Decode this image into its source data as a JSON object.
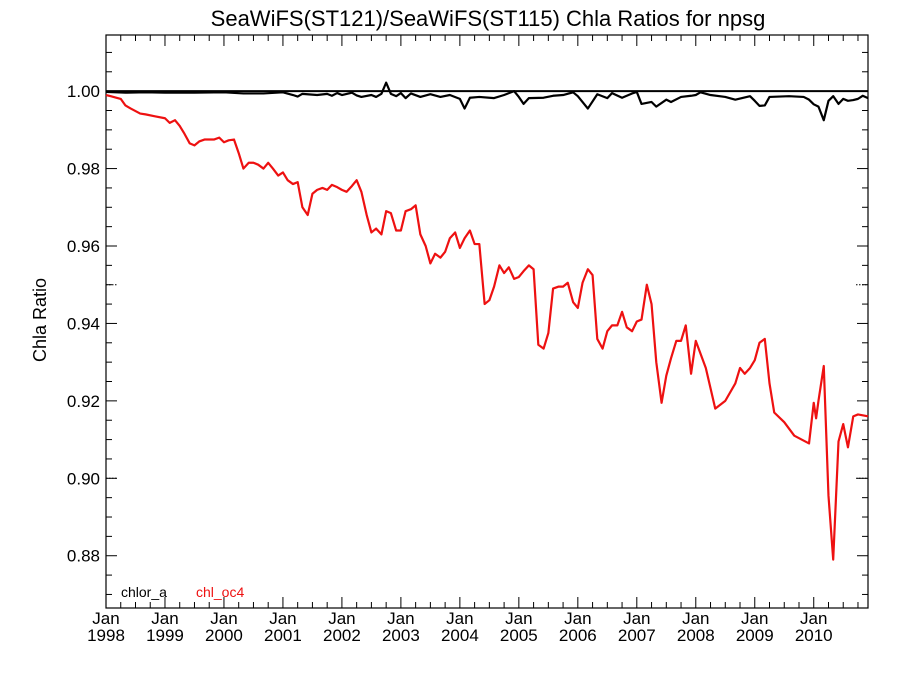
{
  "chart_data": {
    "type": "line",
    "title": "SeaWiFS(ST121)/SeaWiFS(ST115)  Chla Ratios for npsg",
    "xlabel": "",
    "ylabel": "Chla Ratio",
    "xlim": [
      1998.0,
      2010.92
    ],
    "ylim": [
      0.8665,
      1.0145
    ],
    "x_ticks": [
      {
        "month": "Jan",
        "year": "1998",
        "value": 1998
      },
      {
        "month": "Jan",
        "year": "1999",
        "value": 1999
      },
      {
        "month": "Jan",
        "year": "2000",
        "value": 2000
      },
      {
        "month": "Jan",
        "year": "2001",
        "value": 2001
      },
      {
        "month": "Jan",
        "year": "2002",
        "value": 2002
      },
      {
        "month": "Jan",
        "year": "2003",
        "value": 2003
      },
      {
        "month": "Jan",
        "year": "2004",
        "value": 2004
      },
      {
        "month": "Jan",
        "year": "2005",
        "value": 2005
      },
      {
        "month": "Jan",
        "year": "2006",
        "value": 2006
      },
      {
        "month": "Jan",
        "year": "2007",
        "value": 2007
      },
      {
        "month": "Jan",
        "year": "2008",
        "value": 2008
      },
      {
        "month": "Jan",
        "year": "2009",
        "value": 2009
      },
      {
        "month": "Jan",
        "year": "2010",
        "value": 2010
      }
    ],
    "y_ticks": [
      {
        "value": 0.88,
        "label": "0.88"
      },
      {
        "value": 0.9,
        "label": "0.90"
      },
      {
        "value": 0.92,
        "label": "0.92"
      },
      {
        "value": 0.94,
        "label": "0.94"
      },
      {
        "value": 0.96,
        "label": "0.96"
      },
      {
        "value": 0.98,
        "label": "0.98"
      },
      {
        "value": 1.0,
        "label": "1.00"
      }
    ],
    "reference_lines": [
      {
        "y": 1.0,
        "color": "#000000"
      },
      {
        "y": 0.95,
        "color": "#000000",
        "style": "dotted"
      },
      {
        "y": 0.9,
        "color": "#000000",
        "style": "dotted"
      }
    ],
    "legend": [
      {
        "name": "chlor_a",
        "color": "#000000"
      },
      {
        "name": "chl_oc4",
        "color": "#ee1111"
      }
    ],
    "series": [
      {
        "name": "chlor_a",
        "color": "#000000",
        "points": [
          [
            1998.0,
            0.9998
          ],
          [
            1998.33,
            0.9996
          ],
          [
            1998.67,
            0.9997
          ],
          [
            1999.0,
            0.9996
          ],
          [
            1999.5,
            0.9996
          ],
          [
            2000.0,
            0.9997
          ],
          [
            2000.33,
            0.9994
          ],
          [
            2000.67,
            0.9994
          ],
          [
            2001.0,
            0.9997
          ],
          [
            2001.17,
            0.999
          ],
          [
            2001.25,
            0.9986
          ],
          [
            2001.33,
            0.9993
          ],
          [
            2001.58,
            0.999
          ],
          [
            2001.75,
            0.9993
          ],
          [
            2001.83,
            0.9988
          ],
          [
            2001.92,
            0.9995
          ],
          [
            2002.0,
            0.999
          ],
          [
            2002.17,
            0.9996
          ],
          [
            2002.25,
            0.9989
          ],
          [
            2002.33,
            0.9985
          ],
          [
            2002.5,
            0.999
          ],
          [
            2002.58,
            0.9985
          ],
          [
            2002.67,
            0.9993
          ],
          [
            2002.75,
            1.0022
          ],
          [
            2002.83,
            0.9993
          ],
          [
            2002.92,
            0.9987
          ],
          [
            2003.0,
            0.9995
          ],
          [
            2003.08,
            0.9982
          ],
          [
            2003.17,
            0.9994
          ],
          [
            2003.33,
            0.9985
          ],
          [
            2003.5,
            0.9992
          ],
          [
            2003.67,
            0.9985
          ],
          [
            2003.83,
            0.999
          ],
          [
            2004.0,
            0.998
          ],
          [
            2004.08,
            0.9955
          ],
          [
            2004.17,
            0.9983
          ],
          [
            2004.33,
            0.9985
          ],
          [
            2004.58,
            0.9982
          ],
          [
            2004.75,
            0.999
          ],
          [
            2004.92,
            1.0
          ],
          [
            2005.0,
            0.9985
          ],
          [
            2005.08,
            0.9967
          ],
          [
            2005.17,
            0.9982
          ],
          [
            2005.42,
            0.9983
          ],
          [
            2005.58,
            0.9988
          ],
          [
            2005.75,
            0.999
          ],
          [
            2005.92,
            0.9997
          ],
          [
            2006.0,
            0.9987
          ],
          [
            2006.17,
            0.9955
          ],
          [
            2006.33,
            0.9992
          ],
          [
            2006.5,
            0.9982
          ],
          [
            2006.58,
            0.9995
          ],
          [
            2006.75,
            0.9983
          ],
          [
            2006.92,
            0.9994
          ],
          [
            2007.0,
            0.9998
          ],
          [
            2007.08,
            0.9967
          ],
          [
            2007.25,
            0.9972
          ],
          [
            2007.33,
            0.996
          ],
          [
            2007.5,
            0.9978
          ],
          [
            2007.58,
            0.9972
          ],
          [
            2007.75,
            0.9985
          ],
          [
            2007.92,
            0.9988
          ],
          [
            2008.0,
            0.999
          ],
          [
            2008.08,
            0.9997
          ],
          [
            2008.25,
            0.999
          ],
          [
            2008.5,
            0.9985
          ],
          [
            2008.67,
            0.9978
          ],
          [
            2008.92,
            0.9987
          ],
          [
            2009.0,
            0.9975
          ],
          [
            2009.08,
            0.9962
          ],
          [
            2009.17,
            0.9963
          ],
          [
            2009.25,
            0.9985
          ],
          [
            2009.58,
            0.9987
          ],
          [
            2009.83,
            0.9985
          ],
          [
            2009.92,
            0.9978
          ],
          [
            2010.0,
            0.9966
          ],
          [
            2010.08,
            0.996
          ],
          [
            2010.17,
            0.9925
          ],
          [
            2010.25,
            0.9975
          ],
          [
            2010.33,
            0.9987
          ],
          [
            2010.42,
            0.9967
          ],
          [
            2010.5,
            0.998
          ],
          [
            2010.58,
            0.9975
          ],
          [
            2010.67,
            0.9977
          ],
          [
            2010.75,
            0.998
          ],
          [
            2010.83,
            0.9988
          ],
          [
            2010.92,
            0.9982
          ]
        ]
      },
      {
        "name": "chl_oc4",
        "color": "#ee1111",
        "points": [
          [
            1998.0,
            0.999
          ],
          [
            1998.08,
            0.9987
          ],
          [
            1998.25,
            0.998
          ],
          [
            1998.33,
            0.9963
          ],
          [
            1998.42,
            0.9955
          ],
          [
            1998.58,
            0.9942
          ],
          [
            1998.67,
            0.994
          ],
          [
            1998.83,
            0.9935
          ],
          [
            1999.0,
            0.993
          ],
          [
            1999.08,
            0.9918
          ],
          [
            1999.17,
            0.9925
          ],
          [
            1999.25,
            0.991
          ],
          [
            1999.33,
            0.989
          ],
          [
            1999.42,
            0.9865
          ],
          [
            1999.5,
            0.986
          ],
          [
            1999.58,
            0.987
          ],
          [
            1999.67,
            0.9875
          ],
          [
            1999.83,
            0.9875
          ],
          [
            1999.92,
            0.988
          ],
          [
            2000.0,
            0.9868
          ],
          [
            2000.08,
            0.9873
          ],
          [
            2000.17,
            0.9875
          ],
          [
            2000.25,
            0.984
          ],
          [
            2000.33,
            0.98
          ],
          [
            2000.42,
            0.9815
          ],
          [
            2000.5,
            0.9815
          ],
          [
            2000.58,
            0.981
          ],
          [
            2000.67,
            0.98
          ],
          [
            2000.75,
            0.9815
          ],
          [
            2000.83,
            0.98
          ],
          [
            2000.92,
            0.9782
          ],
          [
            2001.0,
            0.979
          ],
          [
            2001.08,
            0.977
          ],
          [
            2001.17,
            0.976
          ],
          [
            2001.25,
            0.9765
          ],
          [
            2001.33,
            0.97
          ],
          [
            2001.42,
            0.968
          ],
          [
            2001.5,
            0.9735
          ],
          [
            2001.58,
            0.9745
          ],
          [
            2001.67,
            0.975
          ],
          [
            2001.75,
            0.9745
          ],
          [
            2001.83,
            0.9758
          ],
          [
            2001.92,
            0.9752
          ],
          [
            2002.0,
            0.9745
          ],
          [
            2002.08,
            0.974
          ],
          [
            2002.17,
            0.9755
          ],
          [
            2002.25,
            0.977
          ],
          [
            2002.33,
            0.974
          ],
          [
            2002.42,
            0.968
          ],
          [
            2002.5,
            0.9635
          ],
          [
            2002.58,
            0.9645
          ],
          [
            2002.67,
            0.963
          ],
          [
            2002.75,
            0.969
          ],
          [
            2002.83,
            0.9685
          ],
          [
            2002.92,
            0.964
          ],
          [
            2003.0,
            0.964
          ],
          [
            2003.08,
            0.969
          ],
          [
            2003.17,
            0.9695
          ],
          [
            2003.25,
            0.9705
          ],
          [
            2003.33,
            0.963
          ],
          [
            2003.42,
            0.96
          ],
          [
            2003.5,
            0.9555
          ],
          [
            2003.58,
            0.958
          ],
          [
            2003.67,
            0.957
          ],
          [
            2003.75,
            0.9585
          ],
          [
            2003.83,
            0.962
          ],
          [
            2003.92,
            0.9635
          ],
          [
            2004.0,
            0.9595
          ],
          [
            2004.08,
            0.962
          ],
          [
            2004.17,
            0.964
          ],
          [
            2004.25,
            0.9605
          ],
          [
            2004.33,
            0.9605
          ],
          [
            2004.42,
            0.945
          ],
          [
            2004.5,
            0.946
          ],
          [
            2004.58,
            0.9495
          ],
          [
            2004.67,
            0.955
          ],
          [
            2004.75,
            0.953
          ],
          [
            2004.83,
            0.9545
          ],
          [
            2004.92,
            0.9515
          ],
          [
            2005.0,
            0.952
          ],
          [
            2005.08,
            0.9535
          ],
          [
            2005.17,
            0.955
          ],
          [
            2005.25,
            0.954
          ],
          [
            2005.33,
            0.9345
          ],
          [
            2005.42,
            0.9335
          ],
          [
            2005.5,
            0.9375
          ],
          [
            2005.58,
            0.949
          ],
          [
            2005.67,
            0.9495
          ],
          [
            2005.75,
            0.9495
          ],
          [
            2005.83,
            0.9505
          ],
          [
            2005.92,
            0.9455
          ],
          [
            2006.0,
            0.944
          ],
          [
            2006.08,
            0.9505
          ],
          [
            2006.17,
            0.954
          ],
          [
            2006.25,
            0.9525
          ],
          [
            2006.33,
            0.936
          ],
          [
            2006.42,
            0.9335
          ],
          [
            2006.5,
            0.938
          ],
          [
            2006.58,
            0.9395
          ],
          [
            2006.67,
            0.9395
          ],
          [
            2006.75,
            0.943
          ],
          [
            2006.83,
            0.939
          ],
          [
            2006.92,
            0.938
          ],
          [
            2007.0,
            0.9405
          ],
          [
            2007.08,
            0.941
          ],
          [
            2007.17,
            0.95
          ],
          [
            2007.25,
            0.945
          ],
          [
            2007.33,
            0.93
          ],
          [
            2007.42,
            0.9195
          ],
          [
            2007.5,
            0.9265
          ],
          [
            2007.58,
            0.931
          ],
          [
            2007.67,
            0.9355
          ],
          [
            2007.75,
            0.9355
          ],
          [
            2007.83,
            0.9395
          ],
          [
            2007.92,
            0.927
          ],
          [
            2008.0,
            0.9355
          ],
          [
            2008.17,
            0.9285
          ],
          [
            2008.33,
            0.918
          ],
          [
            2008.5,
            0.92
          ],
          [
            2008.67,
            0.9245
          ],
          [
            2008.75,
            0.9285
          ],
          [
            2008.83,
            0.927
          ],
          [
            2008.92,
            0.9285
          ],
          [
            2009.0,
            0.9305
          ],
          [
            2009.08,
            0.935
          ],
          [
            2009.17,
            0.936
          ],
          [
            2009.25,
            0.9245
          ],
          [
            2009.33,
            0.917
          ],
          [
            2009.5,
            0.9145
          ],
          [
            2009.67,
            0.911
          ],
          [
            2009.92,
            0.909
          ],
          [
            2010.0,
            0.9195
          ],
          [
            2010.04,
            0.9155
          ],
          [
            2010.08,
            0.92
          ],
          [
            2010.17,
            0.929
          ],
          [
            2010.25,
            0.8955
          ],
          [
            2010.33,
            0.879
          ],
          [
            2010.42,
            0.9095
          ],
          [
            2010.5,
            0.914
          ],
          [
            2010.58,
            0.908
          ],
          [
            2010.67,
            0.916
          ],
          [
            2010.75,
            0.9165
          ],
          [
            2010.92,
            0.916
          ]
        ]
      }
    ]
  }
}
